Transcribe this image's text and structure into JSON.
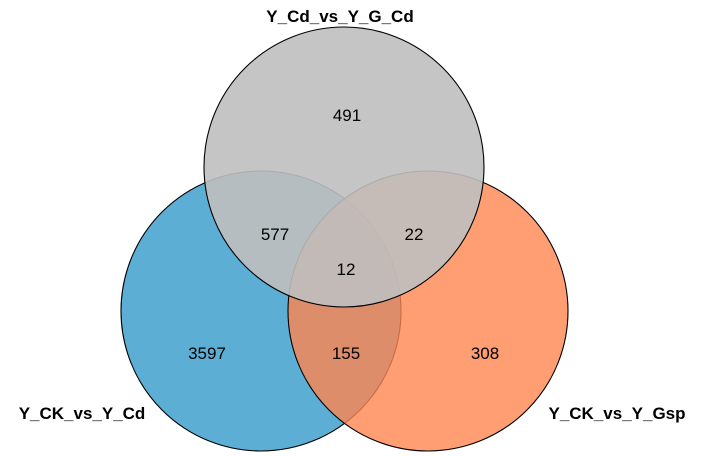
{
  "diagram": {
    "type": "venn-3",
    "sets": [
      {
        "name": "Y_Cd_vs_Y_G_Cd",
        "color": "#bfbfbf",
        "opacity": 0.9
      },
      {
        "name": "Y_CK_vs_Y_Cd",
        "color": "#3fa0cc",
        "opacity": 0.85
      },
      {
        "name": "Y_CK_vs_Y_Gsp",
        "color": "#ff8550",
        "opacity": 0.8
      }
    ],
    "regions": {
      "only_top": "491",
      "top_left": "577",
      "top_right": "22",
      "all_three": "12",
      "only_left": "3597",
      "left_right": "155",
      "only_right": "308"
    }
  }
}
